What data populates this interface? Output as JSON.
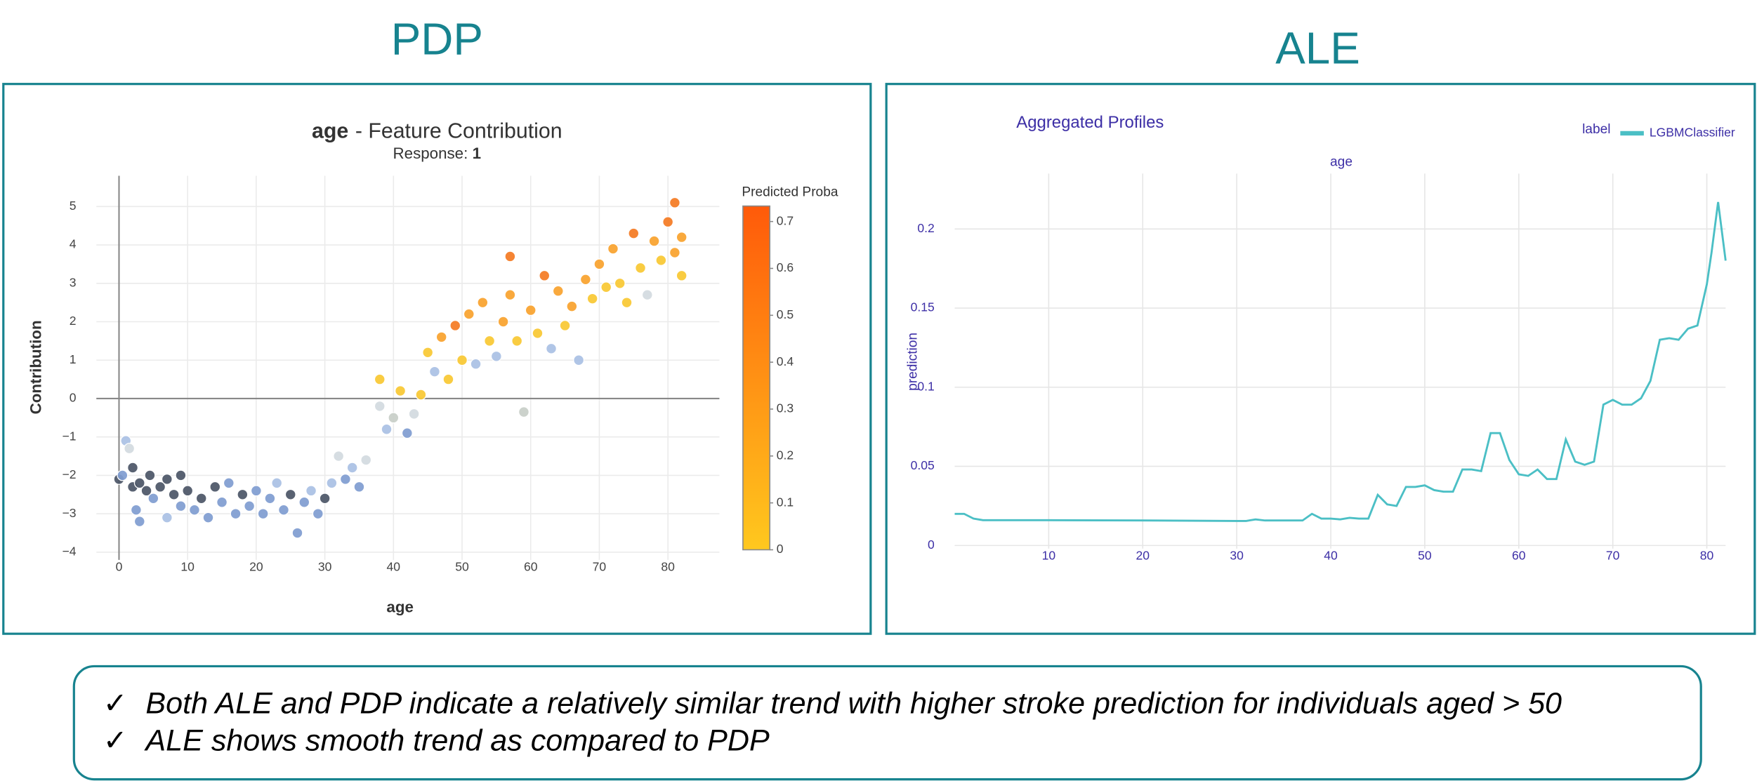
{
  "slide": {
    "headings": [
      "PDP",
      "ALE"
    ],
    "check": "✓",
    "bullets": [
      "Both ALE and PDP indicate a relatively similar trend with higher stroke prediction for individuals aged > 50",
      "ALE shows smooth trend as compared to PDP"
    ]
  },
  "chart_data": [
    {
      "type": "scatter",
      "title": [
        "age",
        "- Feature Contribution"
      ],
      "subtitle": [
        "Response:",
        "1"
      ],
      "xlabel": "age",
      "ylabel": "Contribution",
      "x": [
        0,
        0.5,
        1,
        1.5,
        2,
        2,
        2.5,
        3,
        3,
        4,
        4.5,
        5,
        6,
        7,
        7,
        8,
        9,
        9,
        10,
        11,
        12,
        13,
        14,
        15,
        16,
        17,
        18,
        19,
        20,
        21,
        22,
        23,
        24,
        25,
        26,
        27,
        28,
        29,
        30,
        31,
        32,
        33,
        34,
        35,
        36,
        38,
        38,
        39,
        40,
        41,
        42,
        43,
        44,
        45,
        46,
        47,
        48,
        49,
        50,
        51,
        52,
        53,
        54,
        55,
        56,
        57,
        57,
        58,
        59,
        60,
        61,
        62,
        63,
        64,
        65,
        66,
        67,
        68,
        69,
        70,
        71,
        72,
        73,
        74,
        75,
        76,
        77,
        78,
        79,
        80,
        81,
        81,
        82,
        82
      ],
      "y": [
        -2.1,
        -2,
        -1.1,
        -1.3,
        -2.3,
        -1.8,
        -2.9,
        -2.2,
        -3.2,
        -2.4,
        -2,
        -2.6,
        -2.3,
        -2.1,
        -3.1,
        -2.5,
        -2,
        -2.8,
        -2.4,
        -2.9,
        -2.6,
        -3.1,
        -2.3,
        -2.7,
        -2.2,
        -3,
        -2.5,
        -2.8,
        -2.4,
        -3,
        -2.6,
        -2.2,
        -2.9,
        -2.5,
        -3.5,
        -2.7,
        -2.4,
        -3,
        -2.6,
        -2.2,
        -1.5,
        -2.1,
        -1.8,
        -2.3,
        -1.6,
        0.5,
        -0.2,
        -0.8,
        -0.5,
        0.2,
        -0.9,
        -0.4,
        0.1,
        1.2,
        0.7,
        1.6,
        0.5,
        1.9,
        1,
        2.2,
        0.9,
        2.5,
        1.5,
        1.1,
        2,
        3.7,
        2.7,
        1.5,
        -0.35,
        2.3,
        1.7,
        3.2,
        1.3,
        2.8,
        1.9,
        2.4,
        1,
        3.1,
        2.6,
        3.5,
        2.9,
        3.9,
        3,
        2.5,
        4.3,
        3.4,
        2.7,
        4.1,
        3.6,
        4.6,
        5.1,
        3.8,
        4.2,
        3.2
      ],
      "colors": [
        "#4b5566",
        "#7f9cd0",
        "#a9c0e4",
        "#d3dae0",
        "#4b5566",
        "#4b5566",
        "#7f9cd0",
        "#4b5566",
        "#7f9cd0",
        "#4b5566",
        "#4b5566",
        "#7f9cd0",
        "#4b5566",
        "#4b5566",
        "#a9c0e4",
        "#4b5566",
        "#4b5566",
        "#7f9cd0",
        "#4b5566",
        "#7f9cd0",
        "#4b5566",
        "#7f9cd0",
        "#4b5566",
        "#7f9cd0",
        "#7f9cd0",
        "#7f9cd0",
        "#4b5566",
        "#7f9cd0",
        "#7f9cd0",
        "#7f9cd0",
        "#7f9cd0",
        "#a9c0e4",
        "#7f9cd0",
        "#4b5566",
        "#7f9cd0",
        "#7f9cd0",
        "#a9c0e4",
        "#7f9cd0",
        "#4b5566",
        "#a9c0e4",
        "#d3dae0",
        "#7f9cd0",
        "#a9c0e4",
        "#7f9cd0",
        "#d3dae0",
        "#f8c832",
        "#d3dae0",
        "#a9c0e4",
        "#c8cec8",
        "#f8c832",
        "#7f9cd0",
        "#d3dae0",
        "#f8c832",
        "#f8c832",
        "#a9c0e4",
        "#f8a22c",
        "#f8c832",
        "#f47a22",
        "#f8c832",
        "#f8a22c",
        "#a9c0e4",
        "#f8a22c",
        "#f8c832",
        "#a9c0e4",
        "#f8a22c",
        "#f47a22",
        "#f8a22c",
        "#f8c832",
        "#c8cec8",
        "#f8a22c",
        "#f8c832",
        "#f47a22",
        "#a9c0e4",
        "#f8a22c",
        "#f8c832",
        "#f8a22c",
        "#a9c0e4",
        "#f8a22c",
        "#f8c832",
        "#f8a22c",
        "#f8c832",
        "#f8a22c",
        "#f8c832",
        "#f8c832",
        "#f47a22",
        "#f8c832",
        "#d3dae0",
        "#f8a22c",
        "#f8c832",
        "#f47a22",
        "#f47a22",
        "#f8a22c",
        "#f8a22c",
        "#f8c832"
      ],
      "xlim": [
        -3.3,
        87.5
      ],
      "xticks": [
        0,
        10,
        20,
        30,
        40,
        50,
        60,
        70,
        80
      ],
      "ylim": [
        -4.2,
        5.8
      ],
      "yticks": [
        {
          "value": -4,
          "label": "−4"
        },
        {
          "value": -3,
          "label": "−3"
        },
        {
          "value": -2,
          "label": "−2"
        },
        {
          "value": -1,
          "label": "−1"
        },
        0,
        1,
        2,
        3,
        4,
        5
      ],
      "grid": true,
      "zero_lines": true,
      "colorbar": {
        "title": "Predicted Proba",
        "lim": [
          0,
          0.733
        ],
        "ticks": [
          0,
          0.1,
          0.2,
          0.3,
          0.4,
          0.5,
          0.6,
          0.7
        ],
        "colors": [
          "#ffc81e",
          "#ff5a0a"
        ]
      }
    },
    {
      "type": "line",
      "title": "Aggregated Profiles",
      "subtitle": "age",
      "ylabel": "prediction",
      "legend_title": "label",
      "x": [
        0,
        1,
        2,
        3,
        10,
        20,
        30,
        31,
        32,
        33,
        37,
        38,
        39,
        40,
        41,
        42,
        43,
        44,
        45,
        46,
        47,
        48,
        49,
        50,
        51,
        52,
        53,
        54,
        55,
        56,
        57,
        58,
        59,
        60,
        61,
        62,
        63,
        64,
        65,
        66,
        67,
        68,
        69,
        70,
        71,
        72,
        73,
        74,
        75,
        76,
        77,
        78,
        79,
        80,
        80.5,
        81.2,
        82
      ],
      "series": [
        {
          "name": "LGBMClassifier",
          "color": "#4bbfc5",
          "values": [
            0.02,
            0.02,
            0.017,
            0.016,
            0.016,
            0.0158,
            0.0155,
            0.0155,
            0.0165,
            0.0158,
            0.0158,
            0.02,
            0.017,
            0.017,
            0.0165,
            0.0175,
            0.017,
            0.017,
            0.032,
            0.026,
            0.025,
            0.037,
            0.037,
            0.038,
            0.035,
            0.034,
            0.034,
            0.048,
            0.048,
            0.047,
            0.071,
            0.071,
            0.054,
            0.045,
            0.044,
            0.048,
            0.042,
            0.042,
            0.067,
            0.053,
            0.051,
            0.053,
            0.089,
            0.092,
            0.089,
            0.089,
            0.093,
            0.104,
            0.13,
            0.131,
            0.13,
            0.137,
            0.139,
            0.165,
            0.185,
            0.217,
            0.18
          ]
        }
      ],
      "xlim": [
        0,
        82
      ],
      "xticks": [
        10,
        20,
        30,
        40,
        50,
        60,
        70,
        80
      ],
      "ylim": [
        -0.002,
        0.235
      ],
      "yticks": [
        0,
        0.05,
        0.1,
        0.15,
        0.2
      ],
      "grid": true
    }
  ]
}
